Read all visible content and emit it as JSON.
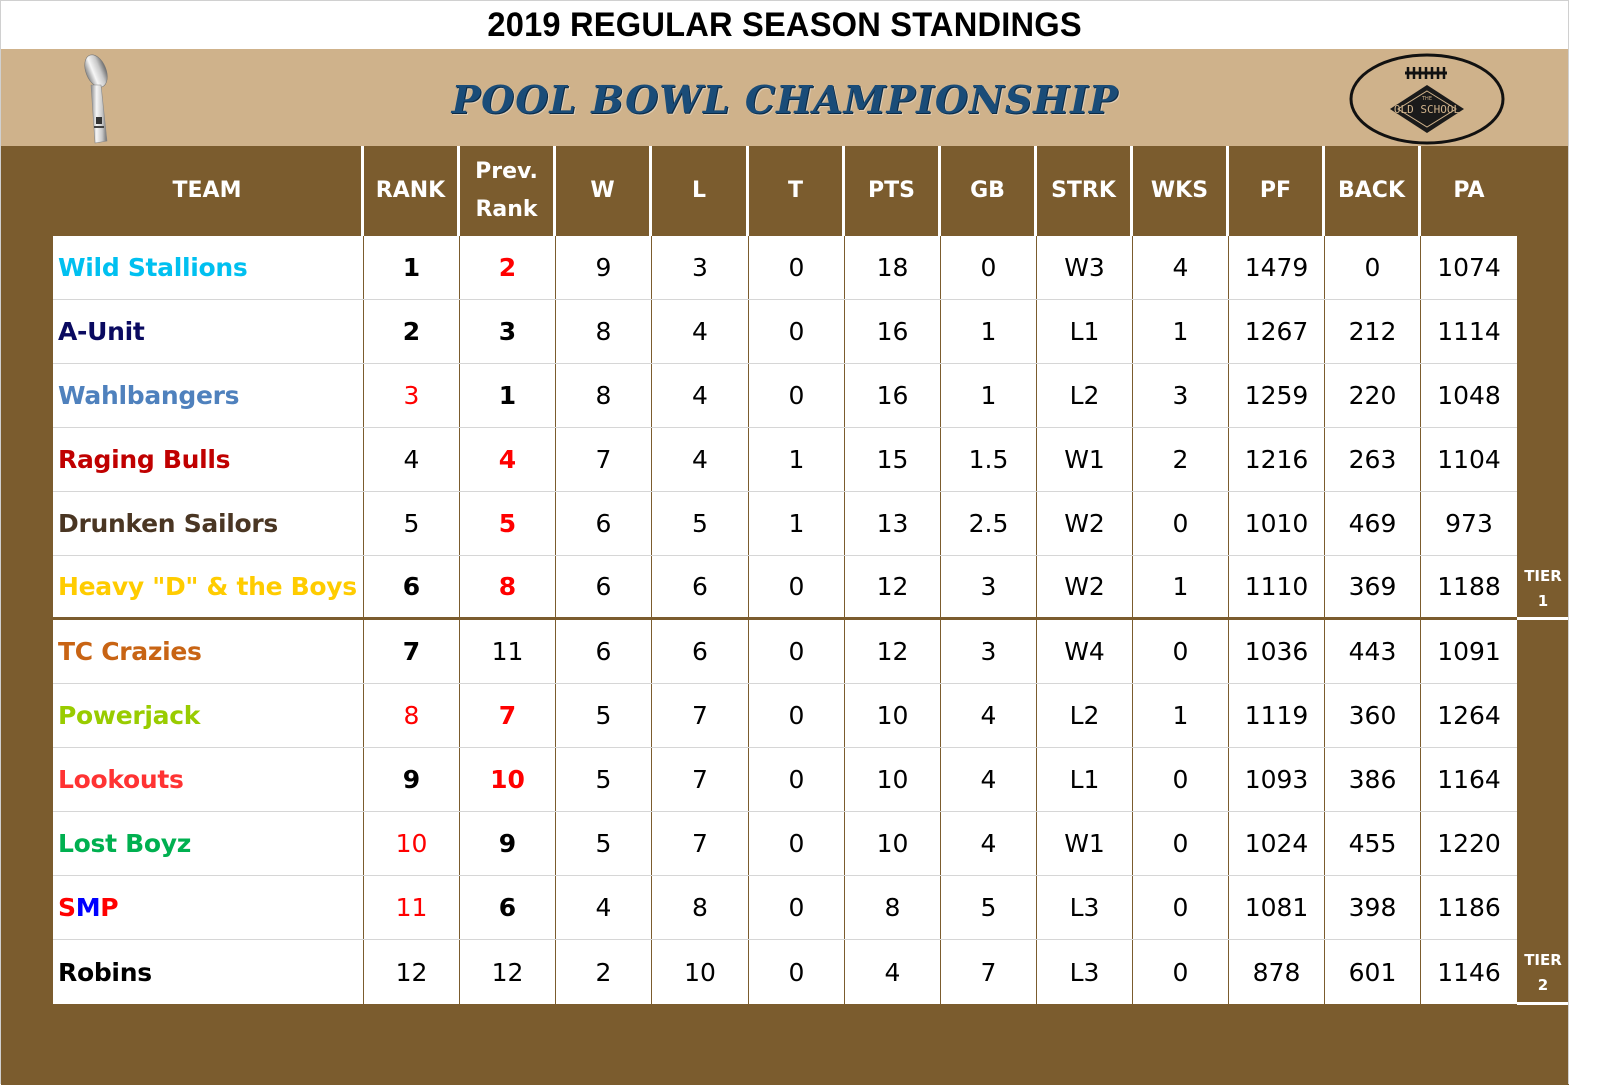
{
  "title": "2019 REGULAR SEASON STANDINGS",
  "banner": {
    "title": "POOL BOWL CHAMPIONSHIP",
    "left_icon": "trophy-icon",
    "right_logo": "old-school-football-logo",
    "logo_text_small": "THE",
    "logo_text": "OLD SCHOOL"
  },
  "colors": {
    "brown": "#7b5c2e",
    "tan": "#cfb28b",
    "banner_title": "#1a4c78",
    "highlight_red": "#ff0000"
  },
  "columns": [
    "TEAM",
    "RANK",
    "Prev. Rank",
    "W",
    "L",
    "T",
    "PTS",
    "GB",
    "STRK",
    "WKS",
    "PF",
    "BACK",
    "PA"
  ],
  "header": {
    "team": "TEAM",
    "rank": "RANK",
    "prev_rank_1": "Prev.",
    "prev_rank_2": "Rank",
    "w": "W",
    "l": "L",
    "t": "T",
    "pts": "PTS",
    "gb": "GB",
    "strk": "STRK",
    "wks": "WKS",
    "pf": "PF",
    "back": "BACK",
    "pa": "PA"
  },
  "tiers": [
    {
      "line1": "TIER",
      "line2": "1"
    },
    {
      "line1": "TIER",
      "line2": "2"
    }
  ],
  "rows": [
    {
      "team": "Wild Stallions",
      "team_color": "#00c0f0",
      "rank": "1",
      "prev": "2",
      "w": "9",
      "l": "3",
      "t": "0",
      "pts": "18",
      "gb": "0",
      "strk": "W3",
      "wks": "4",
      "pf": "1479",
      "back": "0",
      "pa": "1074"
    },
    {
      "team": "A-Unit",
      "team_color": "#0a0a60",
      "rank": "2",
      "prev": "3",
      "w": "8",
      "l": "4",
      "t": "0",
      "pts": "16",
      "gb": "1",
      "strk": "L1",
      "wks": "1",
      "pf": "1267",
      "back": "212",
      "pa": "1114"
    },
    {
      "team": "Wahlbangers",
      "team_color": "#4f81bd",
      "rank": "3",
      "prev": "1",
      "w": "8",
      "l": "4",
      "t": "0",
      "pts": "16",
      "gb": "1",
      "strk": "L2",
      "wks": "3",
      "pf": "1259",
      "back": "220",
      "pa": "1048"
    },
    {
      "team": "Raging Bulls",
      "team_color": "#c00000",
      "rank": "4",
      "prev": "4",
      "w": "7",
      "l": "4",
      "t": "1",
      "pts": "15",
      "gb": "1.5",
      "strk": "W1",
      "wks": "2",
      "pf": "1216",
      "back": "263",
      "pa": "1104"
    },
    {
      "team": "Drunken Sailors",
      "team_color": "#4a3623",
      "rank": "5",
      "prev": "5",
      "w": "6",
      "l": "5",
      "t": "1",
      "pts": "13",
      "gb": "2.5",
      "strk": "W2",
      "wks": "0",
      "pf": "1010",
      "back": "469",
      "pa": "973"
    },
    {
      "team": "Heavy \"D\" & the Boys",
      "team_color": "#ffcc00",
      "rank": "6",
      "prev": "8",
      "w": "6",
      "l": "6",
      "t": "0",
      "pts": "12",
      "gb": "3",
      "strk": "W2",
      "wks": "1",
      "pf": "1110",
      "back": "369",
      "pa": "1188"
    },
    {
      "team": "TC Crazies",
      "team_color": "#c86414",
      "rank": "7",
      "prev": "11",
      "w": "6",
      "l": "6",
      "t": "0",
      "pts": "12",
      "gb": "3",
      "strk": "W4",
      "wks": "0",
      "pf": "1036",
      "back": "443",
      "pa": "1091"
    },
    {
      "team": "Powerjack",
      "team_color": "#99cc00",
      "rank": "8",
      "prev": "7",
      "w": "5",
      "l": "7",
      "t": "0",
      "pts": "10",
      "gb": "4",
      "strk": "L2",
      "wks": "1",
      "pf": "1119",
      "back": "360",
      "pa": "1264"
    },
    {
      "team": "Lookouts",
      "team_color": "#ff3333",
      "rank": "9",
      "prev": "10",
      "w": "5",
      "l": "7",
      "t": "0",
      "pts": "10",
      "gb": "4",
      "strk": "L1",
      "wks": "0",
      "pf": "1093",
      "back": "386",
      "pa": "1164"
    },
    {
      "team": "Lost Boyz",
      "team_color": "#00b050",
      "rank": "10",
      "prev": "9",
      "w": "5",
      "l": "7",
      "t": "0",
      "pts": "10",
      "gb": "4",
      "strk": "W1",
      "wks": "0",
      "pf": "1024",
      "back": "455",
      "pa": "1220"
    },
    {
      "team_parts": [
        "S",
        "M",
        "P"
      ],
      "team_part_colors": [
        "#ff0000",
        "#0000ff",
        "#ff0000"
      ],
      "team": "SMP",
      "team_color": "#ff0000",
      "rank": "11",
      "prev": "6",
      "w": "4",
      "l": "8",
      "t": "0",
      "pts": "8",
      "gb": "5",
      "strk": "L3",
      "wks": "0",
      "pf": "1081",
      "back": "398",
      "pa": "1186"
    },
    {
      "team": "Robins",
      "team_color": "#000000",
      "rank": "12",
      "prev": "12",
      "w": "2",
      "l": "10",
      "t": "0",
      "pts": "4",
      "gb": "7",
      "strk": "L3",
      "wks": "0",
      "pf": "878",
      "back": "601",
      "pa": "1146"
    }
  ],
  "styles": {
    "rank_bold": [
      true,
      true,
      false,
      false,
      false,
      true,
      true,
      false,
      true,
      false,
      false,
      false
    ],
    "rank_red": [
      false,
      false,
      true,
      false,
      false,
      false,
      false,
      true,
      false,
      true,
      true,
      false
    ],
    "prev_bold": [
      true,
      true,
      true,
      true,
      true,
      true,
      false,
      true,
      true,
      true,
      true,
      false
    ],
    "prev_red": [
      true,
      false,
      false,
      true,
      true,
      true,
      false,
      true,
      true,
      false,
      false,
      false
    ]
  }
}
